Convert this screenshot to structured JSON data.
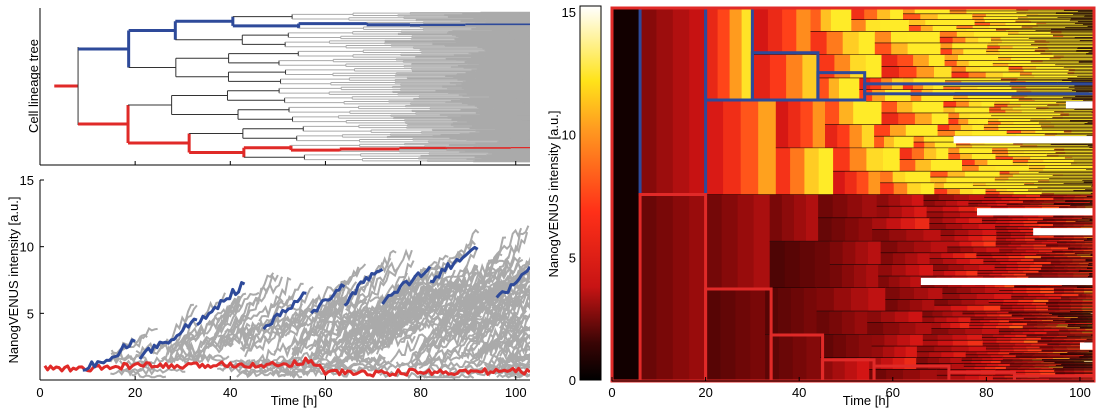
{
  "chart_data": [
    {
      "type": "tree",
      "ylabel": "Cell lineage tree",
      "xlim": [
        0,
        103
      ],
      "highlight_colors": {
        "high_lineage": "#2e4a9a",
        "low_lineage": "#e02a28",
        "other": "#aaaaaa"
      }
    },
    {
      "type": "line",
      "xlabel": "Time [h]",
      "ylabel": "NanogVENUS intensity [a.u.]",
      "xlim": [
        0,
        103
      ],
      "ylim": [
        0,
        15
      ],
      "xticks": [
        "0",
        "20",
        "40",
        "60",
        "80",
        "100"
      ],
      "yticks": [
        "5",
        "10",
        "15"
      ],
      "series": [
        {
          "group": "low",
          "color": "#e02a28",
          "x": [
            1,
            10,
            20,
            30,
            40,
            50,
            57,
            60,
            70,
            80,
            90,
            100,
            103
          ],
          "y": [
            0.9,
            0.8,
            1.1,
            1.0,
            1.2,
            1.1,
            1.5,
            0.6,
            0.5,
            0.6,
            0.6,
            0.7,
            0.6
          ]
        },
        {
          "group": "high",
          "color": "#2e4a9a",
          "x": [
            9,
            14,
            20
          ],
          "y": [
            0.8,
            1.6,
            2.9
          ]
        },
        {
          "group": "high",
          "color": "#2e4a9a",
          "x": [
            21,
            27,
            33
          ],
          "y": [
            1.8,
            3.0,
            4.5
          ]
        },
        {
          "group": "high",
          "color": "#2e4a9a",
          "x": [
            33,
            38,
            43
          ],
          "y": [
            4.2,
            5.8,
            7.2
          ]
        },
        {
          "group": "high",
          "color": "#2e4a9a",
          "x": [
            47,
            51,
            56
          ],
          "y": [
            3.8,
            5.0,
            6.5
          ]
        },
        {
          "group": "high",
          "color": "#2e4a9a",
          "x": [
            57,
            60,
            64
          ],
          "y": [
            4.8,
            6.0,
            7.0
          ]
        },
        {
          "group": "high",
          "color": "#2e4a9a",
          "x": [
            64,
            68,
            72
          ],
          "y": [
            5.8,
            7.3,
            8.3
          ]
        },
        {
          "group": "high",
          "color": "#2e4a9a",
          "x": [
            72,
            77,
            82
          ],
          "y": [
            5.8,
            7.2,
            8.5
          ]
        },
        {
          "group": "high",
          "color": "#2e4a9a",
          "x": [
            82,
            87,
            92
          ],
          "y": [
            7.5,
            8.8,
            9.8
          ]
        },
        {
          "group": "high",
          "color": "#2e4a9a",
          "x": [
            96,
            99,
            103
          ],
          "y": [
            6.2,
            7.0,
            8.5
          ]
        }
      ]
    },
    {
      "type": "heatmap",
      "xlabel": "Time [h]",
      "ylabel": "NanogVENUS intensity [a.u.]",
      "xlim": [
        0,
        103
      ],
      "ylim": [
        0,
        15
      ],
      "xticks": [
        "0",
        "20",
        "40",
        "60",
        "80",
        "100"
      ],
      "yticks": [
        "0",
        "5",
        "10",
        "15"
      ],
      "colorbar": {
        "range": [
          0,
          15
        ],
        "colors": [
          "#ffffff",
          "#ffe31a",
          "#ff3a1a",
          "#c81414",
          "#200000",
          "#000000"
        ]
      },
      "highlight_boxes": [
        {
          "group": "high",
          "x": [
            6,
            20
          ],
          "y": [
            7.5,
            15
          ]
        },
        {
          "group": "high",
          "x": [
            20,
            30
          ],
          "y": [
            11.3,
            15
          ]
        },
        {
          "group": "high",
          "x": [
            30,
            44
          ],
          "y": [
            11.3,
            13.2
          ]
        },
        {
          "group": "high",
          "x": [
            44,
            54
          ],
          "y": [
            11.3,
            12.4
          ]
        },
        {
          "group": "high",
          "x": [
            54,
            103
          ],
          "y": [
            11.55,
            11.95
          ]
        },
        {
          "group": "low",
          "x": [
            0,
            103
          ],
          "y": [
            0,
            15
          ]
        },
        {
          "group": "low",
          "x": [
            6,
            20
          ],
          "y": [
            0,
            7.5
          ]
        },
        {
          "group": "low",
          "x": [
            20,
            34
          ],
          "y": [
            0,
            3.7
          ]
        },
        {
          "group": "low",
          "x": [
            34,
            45
          ],
          "y": [
            0,
            1.85
          ]
        },
        {
          "group": "low",
          "x": [
            45,
            56
          ],
          "y": [
            0,
            0.85
          ]
        },
        {
          "group": "low",
          "x": [
            56,
            72
          ],
          "y": [
            0,
            0.6
          ]
        },
        {
          "group": "low",
          "x": [
            72,
            86
          ],
          "y": [
            0,
            0.35
          ]
        },
        {
          "group": "low",
          "x": [
            86,
            103
          ],
          "y": [
            0,
            0.2
          ]
        }
      ]
    }
  ]
}
